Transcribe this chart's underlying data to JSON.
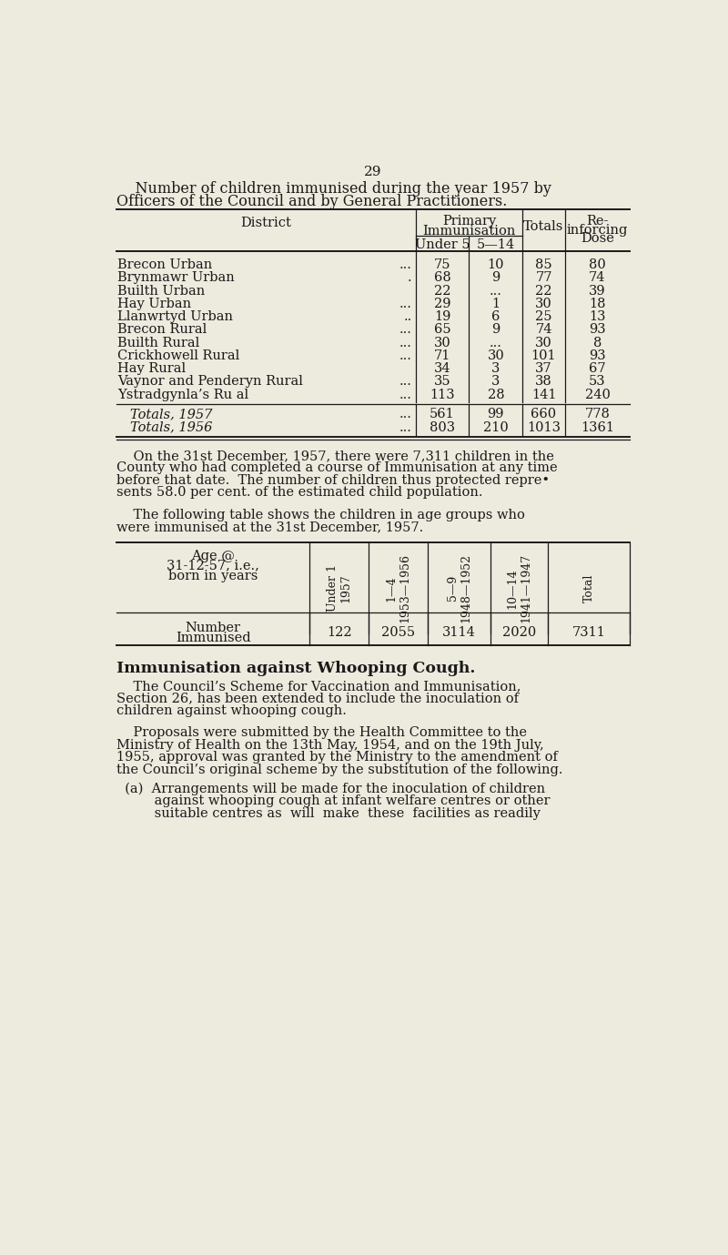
{
  "page_number": "29",
  "bg_color": "#edeade",
  "text_color": "#1a1a1a",
  "title_line1": "    Number of children immunised during the year 1957 by",
  "title_line2": "Officers of the Council and by General Practitioners.",
  "table1_rows": [
    [
      "Brecon Urban",
      "...",
      "75",
      "10",
      "85",
      "80"
    ],
    [
      "Brynmawr Urban",
      ".",
      "68",
      "9",
      "77",
      "74"
    ],
    [
      "Builth Urban",
      "",
      "22",
      "...",
      "22",
      "39"
    ],
    [
      "Hay Urban",
      "...",
      "29",
      "1",
      "30",
      "18"
    ],
    [
      "Llanwrtyd Urban",
      "..",
      "19",
      "6",
      "25",
      "13"
    ],
    [
      "Brecon Rural",
      "...",
      "65",
      "9",
      "74",
      "93"
    ],
    [
      "Builth Rural",
      "...",
      "30",
      "...",
      "30",
      "8"
    ],
    [
      "Crickhowell Rural",
      "...",
      "71",
      "30",
      "101",
      "93"
    ],
    [
      "Hay Rural",
      "",
      "34",
      "3",
      "37",
      "67"
    ],
    [
      "Vaynor and Penderyn Rural",
      "...",
      "35",
      "3",
      "38",
      "53"
    ],
    [
      "Ystradgynla’s Ru al",
      "...",
      "113",
      "28",
      "141",
      "240"
    ]
  ],
  "table1_totals": [
    [
      "Totals, 1957",
      "...",
      "561",
      "99",
      "660",
      "778"
    ],
    [
      "Totals, 1956",
      "...",
      "803",
      "210",
      "1013",
      "1361"
    ]
  ],
  "para1_lines": [
    "    On the 31st December, 1957, there were 7,311 children in the",
    "County who had completed a course of Immunisation at any time",
    "before that date.  The number of children thus protected repre•",
    "sents 58.0 per cent. of the estimated child population."
  ],
  "para2_lines": [
    "    The following table shows the children in age groups who",
    "were immunised at the 31st December, 1957."
  ],
  "table2_col_labels": [
    "Under 1\n1957",
    "1—4\n1953—1956",
    "5—9\n1948—1952",
    "10—14\n1941—1947",
    "Total"
  ],
  "table2_values": [
    "122",
    "2055",
    "3114",
    "2020",
    "7311"
  ],
  "section_heading": "Immunisation against Whooping Cough.",
  "body_para1_lines": [
    "    The Council’s Scheme for Vaccination and Immunisation,",
    "Section 26, has been extended to include the inoculation of",
    "children against whooping cough."
  ],
  "body_para2_lines": [
    "    Proposals were submitted by the Health Committee to the",
    "Ministry of Health on the 13th May, 1954, and on the 19th July,",
    "1955, approval was granted by the Ministry to the amendment of",
    "the Council’s original scheme by the substitution of the following."
  ],
  "body_para3_lines": [
    "  (a)  Arrangements will be made for the inoculation of children",
    "         against whooping cough at infant welfare centres or other",
    "         suitable centres as  will  make  these  facilities as readily"
  ]
}
